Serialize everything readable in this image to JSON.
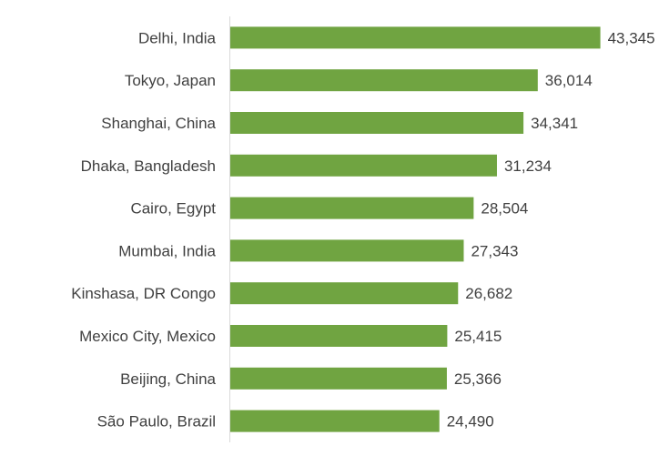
{
  "chart_data": {
    "type": "bar",
    "orientation": "horizontal",
    "categories": [
      "Delhi, India",
      "Tokyo, Japan",
      "Shanghai, China",
      "Dhaka, Bangladesh",
      "Cairo, Egypt",
      "Mumbai, India",
      "Kinshasa, DR Congo",
      "Mexico City, Mexico",
      "Beijing, China",
      "São Paulo, Brazil"
    ],
    "values": [
      43345,
      36014,
      34341,
      31234,
      28504,
      27343,
      26682,
      25415,
      25366,
      24490
    ],
    "value_labels": [
      "43,345",
      "36,014",
      "34,341",
      "31,234",
      "28,504",
      "27,343",
      "26,682",
      "25,415",
      "25,366",
      "24,490"
    ],
    "title": "",
    "xlabel": "",
    "ylabel": "",
    "xlim": [
      0,
      50000
    ],
    "grid": false,
    "legend": "none",
    "bar_color": "#70a441",
    "axis_color": "#d9d9d9",
    "text_color": "#404040"
  }
}
